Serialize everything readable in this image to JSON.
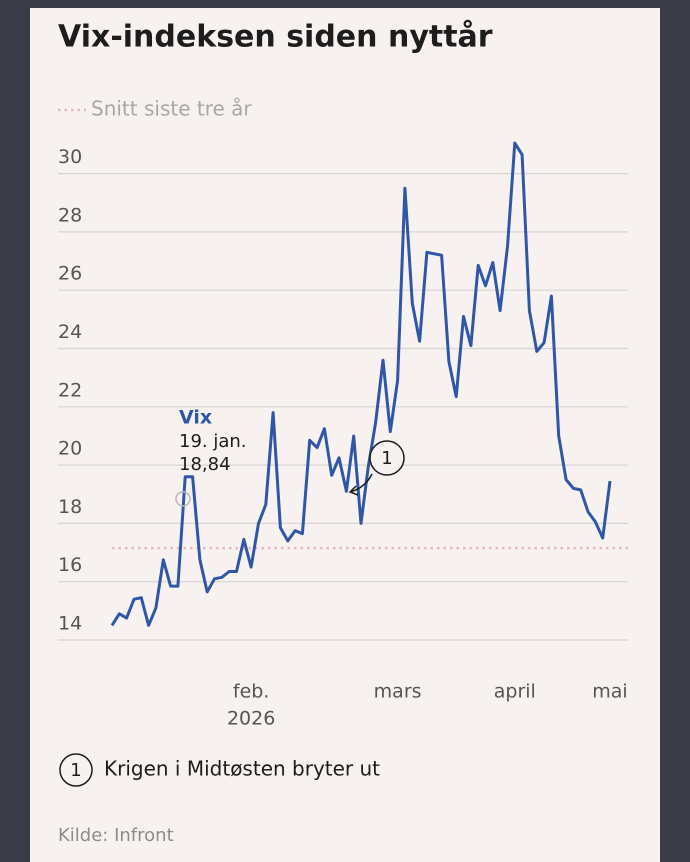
{
  "chart_data": {
    "type": "line",
    "title": "Vix-indeksen siden nyttår",
    "reference": {
      "name": "Snitt siste tre år",
      "value": 17.15,
      "color": "#e3b9bf"
    },
    "categories": [
      null,
      null,
      null,
      null,
      null,
      null,
      null,
      null,
      null,
      null,
      null,
      null,
      null,
      null,
      null,
      null,
      null,
      null,
      null,
      [
        "feb.",
        "2026"
      ],
      null,
      null,
      null,
      null,
      null,
      null,
      null,
      null,
      null,
      null,
      null,
      null,
      null,
      null,
      null,
      null,
      null,
      null,
      null,
      "mars",
      null,
      null,
      null,
      null,
      null,
      null,
      null,
      null,
      null,
      null,
      null,
      null,
      null,
      null,
      null,
      "april",
      null,
      null,
      null,
      null,
      null,
      null,
      null,
      null,
      null,
      null,
      null,
      null,
      "mai"
    ],
    "series": [
      {
        "name": "Vix",
        "color": "#2f57a8",
        "values": [
          14.5,
          14.9,
          14.75,
          15.4,
          15.45,
          14.5,
          15.1,
          16.75,
          15.85,
          15.85,
          19.6,
          19.6,
          16.75,
          15.65,
          16.1,
          16.15,
          16.35,
          16.35,
          17.45,
          16.5,
          18.0,
          18.65,
          21.8,
          17.85,
          17.4,
          17.75,
          17.65,
          20.85,
          20.6,
          21.25,
          19.65,
          20.25,
          19.1,
          21.0,
          18.0,
          19.95,
          21.45,
          23.6,
          21.15,
          22.9,
          29.5,
          25.55,
          24.25,
          27.3,
          27.25,
          27.2,
          23.55,
          22.35,
          25.1,
          24.1,
          26.85,
          26.15,
          26.95,
          25.3,
          27.5,
          31.05,
          30.65,
          25.3,
          23.9,
          24.2,
          25.8,
          21.0,
          19.5,
          19.2,
          19.15,
          18.4,
          18.05,
          17.5,
          19.45
        ]
      }
    ],
    "highlight": {
      "label": "Vix",
      "date": "19. jan.",
      "value": 18.84,
      "value_label": "18,84"
    },
    "event": {
      "number": "1",
      "text": "Krigen i Midtøsten bryter ut"
    },
    "ylim": [
      14,
      31
    ],
    "yticks": [
      14,
      16,
      18,
      20,
      22,
      24,
      26,
      28,
      30
    ],
    "grid": true,
    "source": "Kilde: Infront"
  }
}
